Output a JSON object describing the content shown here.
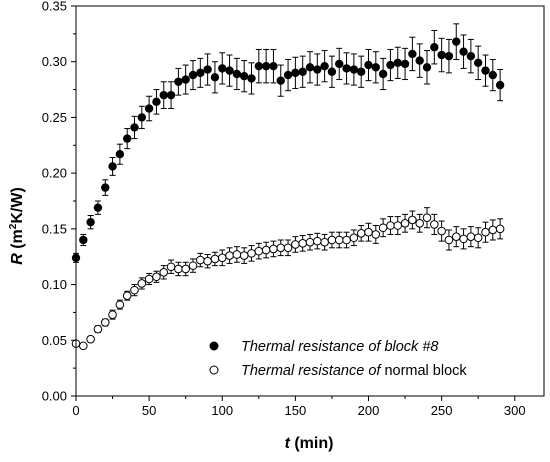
{
  "chart_data": {
    "type": "scatter",
    "xlabel": {
      "var": "t",
      "unit": " (min)"
    },
    "ylabel": {
      "var": "R",
      "unit_pre": " (m",
      "sup": "2",
      "unit_post": "K/W)"
    },
    "xlim": [
      0,
      320
    ],
    "ylim": [
      0.0,
      0.35
    ],
    "x_ticks": [
      0,
      50,
      100,
      150,
      200,
      250,
      300
    ],
    "y_ticks": [
      0.0,
      0.05,
      0.1,
      0.15,
      0.2,
      0.25,
      0.3,
      0.35
    ],
    "x_tick_labels": [
      "0",
      "50",
      "100",
      "150",
      "200",
      "250",
      "300"
    ],
    "y_tick_labels": [
      "0.00",
      "0.05",
      "0.10",
      "0.15",
      "0.20",
      "0.25",
      "0.30",
      "0.35"
    ],
    "grid": false,
    "legend_position": "lower-right",
    "series": [
      {
        "name_italic": "Thermal resistance of block #8",
        "name_upright": "",
        "marker": "filled-circle",
        "color": "#000000",
        "x": [
          0,
          5,
          10,
          15,
          20,
          25,
          30,
          35,
          40,
          45,
          50,
          55,
          60,
          65,
          70,
          75,
          80,
          85,
          90,
          95,
          100,
          105,
          110,
          115,
          120,
          125,
          130,
          135,
          140,
          145,
          150,
          155,
          160,
          165,
          170,
          175,
          180,
          185,
          190,
          195,
          200,
          205,
          210,
          215,
          220,
          225,
          230,
          235,
          240,
          245,
          250,
          255,
          260,
          265,
          270,
          275,
          280,
          285,
          290
        ],
        "y": [
          0.124,
          0.14,
          0.156,
          0.169,
          0.187,
          0.206,
          0.217,
          0.231,
          0.241,
          0.25,
          0.258,
          0.264,
          0.27,
          0.27,
          0.282,
          0.284,
          0.288,
          0.29,
          0.293,
          0.286,
          0.294,
          0.292,
          0.289,
          0.287,
          0.285,
          0.296,
          0.296,
          0.296,
          0.283,
          0.288,
          0.29,
          0.291,
          0.295,
          0.293,
          0.296,
          0.291,
          0.298,
          0.294,
          0.293,
          0.291,
          0.297,
          0.295,
          0.289,
          0.297,
          0.299,
          0.298,
          0.307,
          0.301,
          0.295,
          0.313,
          0.306,
          0.305,
          0.318,
          0.309,
          0.305,
          0.299,
          0.292,
          0.288,
          0.279
        ],
        "err": [
          0.004,
          0.005,
          0.006,
          0.006,
          0.007,
          0.008,
          0.009,
          0.009,
          0.01,
          0.01,
          0.011,
          0.011,
          0.012,
          0.012,
          0.012,
          0.013,
          0.013,
          0.013,
          0.014,
          0.014,
          0.014,
          0.014,
          0.014,
          0.014,
          0.014,
          0.015,
          0.015,
          0.015,
          0.014,
          0.014,
          0.014,
          0.014,
          0.014,
          0.014,
          0.014,
          0.014,
          0.014,
          0.014,
          0.014,
          0.014,
          0.014,
          0.014,
          0.014,
          0.014,
          0.014,
          0.014,
          0.015,
          0.015,
          0.015,
          0.015,
          0.015,
          0.015,
          0.016,
          0.015,
          0.015,
          0.015,
          0.014,
          0.014,
          0.014
        ]
      },
      {
        "name_italic": "Thermal resistance of",
        "name_upright": " normal block",
        "marker": "open-circle",
        "color": "#000000",
        "x": [
          0,
          5,
          10,
          15,
          20,
          25,
          30,
          35,
          40,
          45,
          50,
          55,
          60,
          65,
          70,
          75,
          80,
          85,
          90,
          95,
          100,
          105,
          110,
          115,
          120,
          125,
          130,
          135,
          140,
          145,
          150,
          155,
          160,
          165,
          170,
          175,
          180,
          185,
          190,
          195,
          200,
          205,
          210,
          215,
          220,
          225,
          230,
          235,
          240,
          245,
          250,
          255,
          260,
          265,
          270,
          275,
          280,
          285,
          290
        ],
        "y": [
          0.047,
          0.045,
          0.051,
          0.06,
          0.066,
          0.073,
          0.082,
          0.09,
          0.095,
          0.101,
          0.105,
          0.107,
          0.111,
          0.116,
          0.114,
          0.114,
          0.117,
          0.122,
          0.121,
          0.123,
          0.124,
          0.126,
          0.127,
          0.126,
          0.128,
          0.13,
          0.131,
          0.132,
          0.133,
          0.133,
          0.136,
          0.137,
          0.138,
          0.139,
          0.138,
          0.14,
          0.14,
          0.14,
          0.142,
          0.146,
          0.147,
          0.145,
          0.151,
          0.153,
          0.153,
          0.155,
          0.158,
          0.155,
          0.16,
          0.154,
          0.148,
          0.14,
          0.143,
          0.141,
          0.143,
          0.142,
          0.147,
          0.149,
          0.15
        ],
        "err": [
          0.002,
          0.002,
          0.002,
          0.003,
          0.003,
          0.004,
          0.004,
          0.004,
          0.005,
          0.005,
          0.005,
          0.005,
          0.006,
          0.006,
          0.006,
          0.006,
          0.006,
          0.006,
          0.006,
          0.006,
          0.007,
          0.007,
          0.007,
          0.007,
          0.007,
          0.007,
          0.007,
          0.007,
          0.007,
          0.007,
          0.007,
          0.007,
          0.007,
          0.007,
          0.007,
          0.007,
          0.007,
          0.007,
          0.007,
          0.007,
          0.008,
          0.008,
          0.008,
          0.008,
          0.008,
          0.008,
          0.008,
          0.008,
          0.009,
          0.009,
          0.009,
          0.009,
          0.009,
          0.009,
          0.009,
          0.009,
          0.009,
          0.009,
          0.009
        ]
      }
    ]
  }
}
